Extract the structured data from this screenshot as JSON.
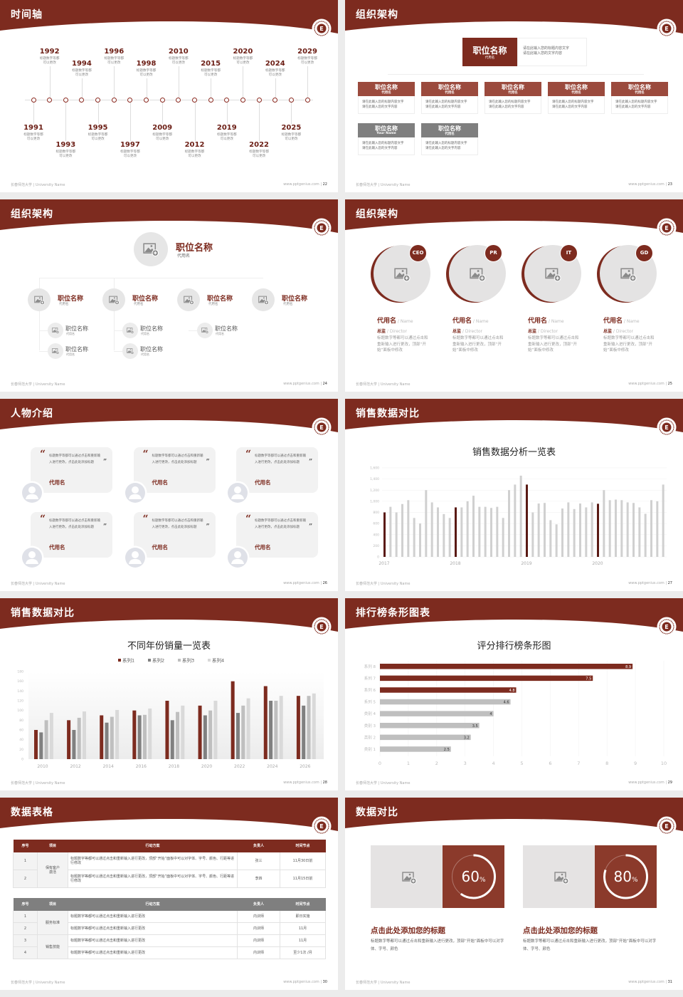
{
  "footer": {
    "university": "长春师范大学 | University Name",
    "site": "www.pptgenius.com"
  },
  "colors": {
    "brand": "#7d2b1f",
    "card_red": "#9b4a3d",
    "card_gray": "#7f7f7f",
    "bar_gray": "#d0d0d0",
    "bar_dark": "#5a1a14",
    "panel_red": "#8b3a2b"
  },
  "icons": {
    "logo": "university-seal",
    "image": "image-placeholder-icon",
    "avatar": "person-icon",
    "quote": "quote-icon"
  },
  "slides": [
    {
      "title": "时间轴",
      "page": "22",
      "timeline": [
        {
          "year": "1991",
          "desc": "标题数字等都\n可以更改"
        },
        {
          "year": "1992",
          "desc": "标题数字等都\n可以更改"
        },
        {
          "year": "1993",
          "desc": "标题数字等都\n可以更改"
        },
        {
          "year": "1994",
          "desc": "标题数字等都\n可以更改"
        },
        {
          "year": "1995",
          "desc": "标题数字等都\n可以更改"
        },
        {
          "year": "1996",
          "desc": "标题数字等都\n可以更改"
        },
        {
          "year": "1997",
          "desc": "标题数字等都\n可以更改"
        },
        {
          "year": "1998",
          "desc": "标题数字等都\n可以更改"
        },
        {
          "year": "2009",
          "desc": "标题数字等都\n可以更改"
        },
        {
          "year": "2010",
          "desc": "标题数字等都\n可以更改"
        },
        {
          "year": "2012",
          "desc": "标题数字等都\n可以更改"
        },
        {
          "year": "2015",
          "desc": "标题数字等都\n可以更改"
        },
        {
          "year": "2019",
          "desc": "标题数字等都\n可以更改"
        },
        {
          "year": "2020",
          "desc": "标题数字等都\n可以更改"
        },
        {
          "year": "2022",
          "desc": "标题数字等都\n可以更改"
        },
        {
          "year": "2024",
          "desc": "标题数字等都\n可以更改"
        },
        {
          "year": "2025",
          "desc": "标题数字等都\n可以更改"
        },
        {
          "year": "2029",
          "desc": "标题数字等都\n可以更改"
        }
      ]
    },
    {
      "title": "组织架构",
      "page": "23",
      "top": {
        "title": "职位名称",
        "sub": "代用名",
        "desc": "请在此输入您的标题内容文字\n请在此输入您的文字内容"
      },
      "cards": [
        {
          "title": "职位名称",
          "sub": "代用名",
          "desc": "请在此输入您的标题内容文字\n请在此输入您的文字内容",
          "tone": "red"
        },
        {
          "title": "职位名称",
          "sub": "代用名",
          "desc": "请在此输入您的标题内容文字\n请在此输入您的文字内容",
          "tone": "red"
        },
        {
          "title": "职位名称",
          "sub": "代用名",
          "desc": "请在此输入您的标题内容文字\n请在此输入您的文字内容",
          "tone": "red"
        },
        {
          "title": "职位名称",
          "sub": "代用名",
          "desc": "请在此输入您的标题内容文字\n请在此输入您的文字内容",
          "tone": "red"
        },
        {
          "title": "职位名称",
          "sub": "代用名",
          "desc": "请在此输入您的标题内容文字\n请在此输入您的文字内容",
          "tone": "red"
        },
        {
          "title": "职位名称",
          "sub": "Your Name",
          "desc": "请在此输入您的标题内容文字\n请在此输入您的文字内容",
          "tone": "gray"
        },
        {
          "title": "职位名称",
          "sub": "代用名",
          "desc": "请在此输入您的标题内容文字\n请在此输入您的文字内容",
          "tone": "gray"
        }
      ]
    },
    {
      "title": "组织架构",
      "page": "24",
      "top": {
        "title": "职位名称",
        "sub": "代用名"
      },
      "branches": [
        {
          "title": "职位名称",
          "sub": "代用名",
          "children": [
            {
              "title": "职位名称",
              "sub": "代用名"
            },
            {
              "title": "职位名称",
              "sub": "代用名"
            }
          ]
        },
        {
          "title": "职位名称",
          "sub": "代用名",
          "children": [
            {
              "title": "职位名称",
              "sub": "代用名"
            },
            {
              "title": "职位名称",
              "sub": "代用名"
            }
          ]
        },
        {
          "title": "职位名称",
          "sub": "代用名",
          "children": [
            {
              "title": "职位名称",
              "sub": "代用名"
            }
          ]
        },
        {
          "title": "职位名称",
          "sub": "代用名",
          "children": []
        }
      ]
    },
    {
      "title": "组织架构",
      "page": "25",
      "members": [
        {
          "badge": "CEO",
          "name": "代用名",
          "name_en": " / Name",
          "role": "总监",
          "role_en": " /  Director",
          "desc": "标题数字等都可以通过点击和重新输入进行更改，顶部“开始”面板中修改"
        },
        {
          "badge": "PR",
          "name": "代用名",
          "name_en": " / Name",
          "role": "总监",
          "role_en": " /  Director",
          "desc": "标题数字等都可以通过点击和重新输入进行更改，顶部“开始”面板中修改"
        },
        {
          "badge": "IT",
          "name": "代用名",
          "name_en": " / Name",
          "role": "总监",
          "role_en": " /  Director",
          "desc": "标题数字等都可以通过点击和重新输入进行更改，顶部“开始”面板中修改"
        },
        {
          "badge": "GD",
          "name": "代用名",
          "name_en": " / Name",
          "role": "总监",
          "role_en": " /  Director",
          "desc": "标题数字等都可以通过点击和重新输入进行更改，顶部“开始”面板中修改"
        }
      ]
    },
    {
      "title": "人物介绍",
      "page": "26",
      "people": [
        {
          "quote": "标题数字等都可以通过点击和重新输入进行更改，点击此处添加标题",
          "name": "代用名"
        },
        {
          "quote": "标题数字等都可以通过点击和重新输入进行更改，点击此处添加标题",
          "name": "代用名"
        },
        {
          "quote": "标题数字等都可以通过点击和重新输入进行更改，点击此处添加标题",
          "name": "代用名"
        },
        {
          "quote": "标题数字等都可以通过点击和重新输入进行更改，点击此处添加标题",
          "name": "代用名"
        },
        {
          "quote": "标题数字等都可以通过点击和重新输入进行更改，点击此处添加标题",
          "name": "代用名"
        },
        {
          "quote": "标题数字等都可以通过点击和重新输入进行更改，点击此处添加标题",
          "name": "代用名"
        }
      ]
    },
    {
      "title": "销售数据对比",
      "page": "27",
      "chart": 0
    },
    {
      "title": "销售数据对比",
      "page": "28",
      "chart": 1
    },
    {
      "title": "排行榜条形图表",
      "page": "29",
      "chart": 2
    },
    {
      "title": "数据表格",
      "page": "30",
      "tables": [
        {
          "headers": [
            "序号",
            "项目",
            "行动方案",
            "负责人",
            "时间节点"
          ],
          "tone": "red",
          "groups": [
            {
              "item": "保有客户\n激活",
              "rows": [
                {
                  "no": "1",
                  "plan": "标题数字等都可以通过点击和重新输入进行更改，顶部“开始”面板中可以对字体、字号、颜色、行距等进行修改",
                  "owner": "张三",
                  "time": "11月30日前"
                },
                {
                  "no": "2",
                  "plan": "标题数字等都可以通过点击和重新输入进行更改，顶部“开始”面板中可以对字体、字号、颜色、行距等进行修改",
                  "owner": "李四",
                  "time": "11月15日前"
                }
              ]
            }
          ]
        },
        {
          "headers": [
            "序号",
            "项目",
            "行动方案",
            "负责人",
            "时间节点"
          ],
          "tone": "gray",
          "groups": [
            {
              "item": "服务标准",
              "rows": [
                {
                  "no": "1",
                  "plan": "标题数字等都可以通过点击和重新输入进行更改",
                  "owner": "内训师",
                  "time": "即日实施"
                },
                {
                  "no": "2",
                  "plan": "标题数字等都可以通过点击和重新输入进行更改",
                  "owner": "内训师",
                  "time": "11月"
                }
              ]
            },
            {
              "item": "销售技能",
              "rows": [
                {
                  "no": "3",
                  "plan": "标题数字等都可以通过点击和重新输入进行更改",
                  "owner": "内训师",
                  "time": "11月"
                },
                {
                  "no": "4",
                  "plan": "标题数字等都可以通过点击和重新输入进行更改",
                  "owner": "内训师",
                  "time": "至少1次 /月"
                }
              ]
            }
          ]
        }
      ]
    },
    {
      "title": "数据对比",
      "page": "31",
      "items": [
        {
          "percent": 60,
          "value": "60",
          "unit": "%",
          "title": "点击此处添加您的标题",
          "desc": "标题数字等都可以通过点击和重新输入进行更改，顶部“开始”面板中可以对字体、字号、颜色"
        },
        {
          "percent": 80,
          "value": "80",
          "unit": "%",
          "title": "点击此处添加您的标题",
          "desc": "标题数字等都可以通过点击和重新输入进行更改，顶部“开始”面板中可以对字体、字号、颜色"
        }
      ]
    }
  ],
  "chart_data": [
    {
      "type": "bar",
      "title": "销售数据分析一览表",
      "ylim": [
        0,
        1600
      ],
      "yticks": [
        "0",
        "200",
        "400",
        "600",
        "800",
        "1,000",
        "1,200",
        "1,400",
        "1,600"
      ],
      "xlabels": [
        "2017",
        "2018",
        "2019",
        "2020"
      ],
      "values": [
        800,
        900,
        800,
        950,
        1020,
        700,
        600,
        1200,
        980,
        890,
        770,
        700,
        890,
        890,
        1000,
        1100,
        900,
        900,
        880,
        900,
        700,
        1200,
        1300,
        1460,
        1300,
        800,
        960,
        970,
        660,
        585,
        870,
        980,
        860,
        960,
        890,
        980,
        955,
        1200,
        1020,
        1030,
        1020,
        980,
        970,
        890,
        775,
        1020,
        1000,
        1300
      ],
      "highlight_every": 12,
      "grid": true
    },
    {
      "type": "bar",
      "title": "不同年份销量一览表",
      "ylim": [
        0,
        180
      ],
      "yticks": [
        "0",
        "20",
        "40",
        "60",
        "80",
        "100",
        "120",
        "140",
        "160",
        "180"
      ],
      "categories": [
        "2010",
        "2012",
        "2014",
        "2016",
        "2018",
        "2020",
        "2022",
        "2024",
        "2026"
      ],
      "legend": "top",
      "series": [
        {
          "name": "系列1",
          "color": "#7d2b1f",
          "values": [
            60,
            80,
            90,
            100,
            120,
            110,
            160,
            150,
            130
          ]
        },
        {
          "name": "系列2",
          "color": "#808080",
          "values": [
            55,
            60,
            75,
            90,
            80,
            90,
            95,
            120,
            110
          ]
        },
        {
          "name": "系列3",
          "color": "#bfbfbf",
          "values": [
            80,
            85,
            87,
            91,
            97,
            100,
            110,
            120,
            130
          ]
        },
        {
          "name": "系列4",
          "color": "#d9d9d9",
          "values": [
            95,
            98,
            101,
            104,
            110,
            120,
            125,
            130,
            135
          ]
        }
      ]
    },
    {
      "type": "bar",
      "orientation": "horizontal",
      "title": "评分排行榜条形图",
      "xlim": [
        0,
        10
      ],
      "xticks": [
        "0",
        "1",
        "2",
        "3",
        "4",
        "5",
        "6",
        "7",
        "8",
        "9",
        "10"
      ],
      "categories": [
        "系列 8",
        "系列 7",
        "系列 6",
        "系列 5",
        "类别 4",
        "类别 3",
        "类别 2",
        "类别 1"
      ],
      "values": [
        8.9,
        7.5,
        4.8,
        4.6,
        4,
        3.5,
        3.2,
        2.5
      ],
      "labels": [
        "8.9",
        "7.5",
        "4.8",
        "4.6",
        "4",
        "3.5",
        "3.2",
        "2.5"
      ],
      "highlight_top": 3,
      "grid": true
    }
  ]
}
